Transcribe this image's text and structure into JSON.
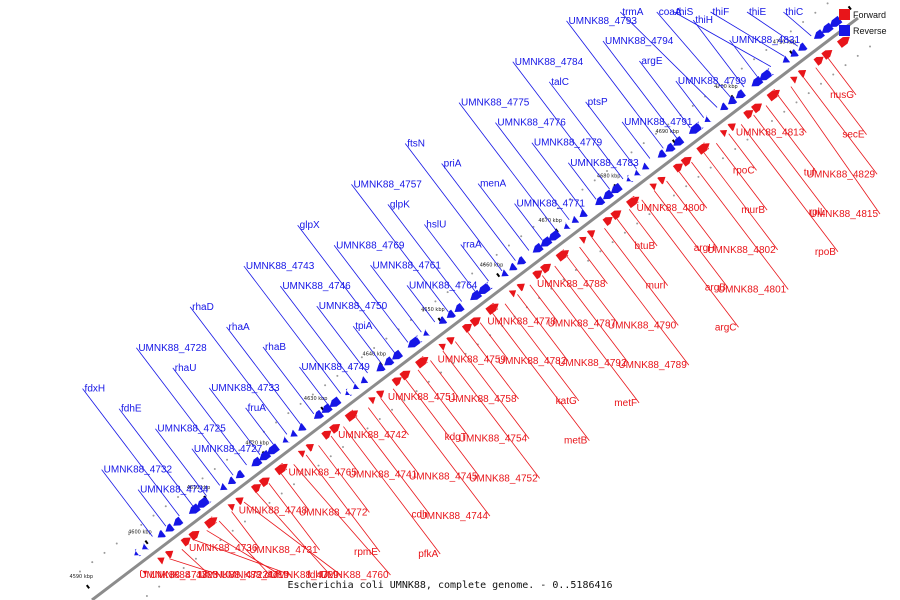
{
  "title": "Escherichia coli UMNK88, complete genome. - 0..5186416",
  "colors": {
    "forward": "#e8151a",
    "reverse": "#1616e6",
    "backbone": "#8c8c8c",
    "dots": "#9a9a9a"
  },
  "legend": {
    "forward": "Forward",
    "reverse": "Reverse"
  },
  "ticks": [
    "4590 kbp",
    "4600 kbp",
    "4610 kbp",
    "4620 kbp",
    "4630 kbp",
    "4640 kbp",
    "4650 kbp",
    "4660 kbp",
    "4670 kbp",
    "4680 kbp",
    "4690 kbp",
    "4700 kbp",
    "4710 kbp",
    "4720 kbp"
  ],
  "forward_labels": [
    "nusG",
    "secE",
    "UMNK88_4829",
    "UMNK88_4815",
    "UMNK88_4813",
    "tuf",
    "rplL",
    "rpoB",
    "rpoC",
    "murB",
    "UMNK88_4802",
    "UMNK88_4801",
    "UMNK88_4800",
    "argH",
    "argB",
    "argC",
    "btuB",
    "murI",
    "UMNK88_4790",
    "UMNK88_4789",
    "UMNK88_4788",
    "UMNK88_4787",
    "UMNK88_4792",
    "metF",
    "UMNK88_4778",
    "UMNK88_4782",
    "katG",
    "metB",
    "UMNK88_4759",
    "UMNK88_4758",
    "UMNK88_4754",
    "UMNK88_4752",
    "UMNK88_4751",
    "kdgT",
    "UMNK88_4745",
    "UMNK88_4744",
    "UMNK88_4742",
    "UMNK88_4741",
    "cdh",
    "pfkA",
    "UMNK88_4765",
    "UMNK88_4772",
    "rpmE",
    "UMNK88_4760",
    "UMNK88_4748",
    "UMNK88_4731",
    "fdhD",
    "UMNK88_4729",
    "UMNK88_4736",
    "UMNK88_4722",
    "dtd",
    "UMNK88_4719",
    "UMNK88_4718",
    "UMNK88_4723"
  ],
  "reverse_labels": [
    "thiC",
    "thiE",
    "thiF",
    "thiS",
    "UMNK88_4831",
    "thiH",
    "coaA",
    "trmA",
    "UMNK88_4799",
    "argE",
    "UMNK88_4794",
    "UMNK88_4793",
    "UMNK88_4791",
    "ptsP",
    "talC",
    "UMNK88_4784",
    "UMNK88_4783",
    "UMNK88_4779",
    "UMNK88_4776",
    "UMNK88_4775",
    "UMNK88_4771",
    "menA",
    "priA",
    "ftsN",
    "rraA",
    "hslU",
    "glpK",
    "UMNK88_4757",
    "UMNK88_4764",
    "UMNK88_4761",
    "UMNK88_4769",
    "glpX",
    "tpiA",
    "UMNK88_4750",
    "UMNK88_4746",
    "UMNK88_4743",
    "UMNK88_4749",
    "rhaB",
    "rhaA",
    "rhaD",
    "fruA",
    "UMNK88_4733",
    "rhaU",
    "UMNK88_4728",
    "UMNK88_4727",
    "UMNK88_4725",
    "fdhE",
    "fdxH",
    "UMNK88_4734",
    "UMNK88_4732"
  ]
}
